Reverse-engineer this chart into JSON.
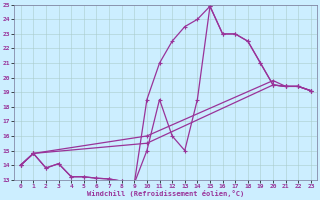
{
  "xlabel": "Windchill (Refroidissement éolien,°C)",
  "xlim": [
    -0.5,
    23.5
  ],
  "ylim": [
    13,
    25
  ],
  "xticks": [
    0,
    1,
    2,
    3,
    4,
    5,
    6,
    7,
    8,
    9,
    10,
    11,
    12,
    13,
    14,
    15,
    16,
    17,
    18,
    19,
    20,
    21,
    22,
    23
  ],
  "yticks": [
    13,
    14,
    15,
    16,
    17,
    18,
    19,
    20,
    21,
    22,
    23,
    24,
    25
  ],
  "bg_color": "#cceeff",
  "line_color": "#993399",
  "grid_color": "#aacccc",
  "lines": [
    {
      "x": [
        0,
        1,
        2,
        3,
        4,
        5,
        6,
        7,
        8,
        9,
        10,
        11,
        12,
        13,
        14,
        15,
        16,
        17,
        18,
        19,
        20,
        21,
        22,
        23
      ],
      "y": [
        14.0,
        14.8,
        13.8,
        14.1,
        13.2,
        13.2,
        13.1,
        13.05,
        12.9,
        12.75,
        18.5,
        21.0,
        22.5,
        23.5,
        24.0,
        24.9,
        23.0,
        23.0,
        22.5,
        21.0,
        19.5,
        19.4,
        19.4,
        19.1
      ]
    },
    {
      "x": [
        0,
        1,
        2,
        3,
        4,
        5,
        6,
        7,
        8,
        9,
        10,
        11,
        12,
        13,
        14,
        15,
        16,
        17,
        18,
        19,
        20,
        21,
        22,
        23
      ],
      "y": [
        14.0,
        14.8,
        13.8,
        14.1,
        13.2,
        13.2,
        13.1,
        13.05,
        12.9,
        12.75,
        15.0,
        18.5,
        16.0,
        15.0,
        18.5,
        24.9,
        23.0,
        23.0,
        22.5,
        21.0,
        19.5,
        19.4,
        19.4,
        19.1
      ]
    },
    {
      "x": [
        0,
        1,
        10,
        20,
        21,
        22,
        23
      ],
      "y": [
        14.0,
        14.8,
        16.0,
        19.8,
        19.4,
        19.4,
        19.1
      ]
    },
    {
      "x": [
        0,
        1,
        10,
        20,
        21,
        22,
        23
      ],
      "y": [
        14.0,
        14.8,
        15.5,
        19.5,
        19.4,
        19.4,
        19.1
      ]
    }
  ]
}
